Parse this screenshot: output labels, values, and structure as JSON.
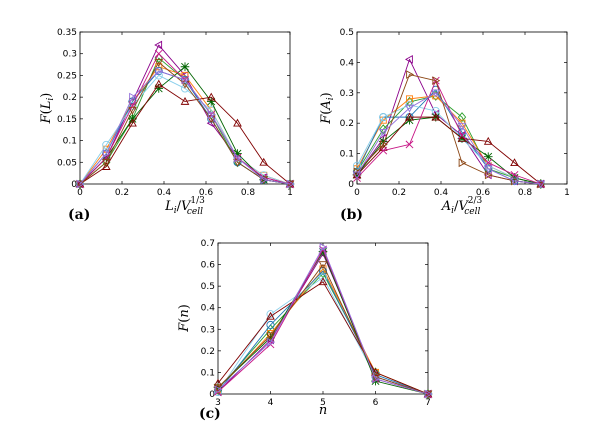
{
  "chart_data": [
    {
      "type": "line",
      "panel_label": "(a)",
      "xlabel_base": "L",
      "xlabel_sub": "i",
      "xlabel_denom": "V",
      "xlabel_denom_sub": "cell",
      "xlabel_exp": "1/3",
      "ylabel_fn": "F",
      "ylabel_arg": "L",
      "ylabel_arg_sub": "i",
      "xlim": [
        0,
        1
      ],
      "ylim": [
        0,
        0.35
      ],
      "xticks": [
        "0",
        "0.2",
        "0.4",
        "0.6",
        "0.8",
        "1"
      ],
      "yticks": [
        "0",
        "0.05",
        "0.1",
        "0.15",
        "0.2",
        "0.25",
        "0.3",
        "0.35"
      ],
      "x": [
        0,
        0.125,
        0.25,
        0.375,
        0.5,
        0.625,
        0.75,
        0.875,
        1
      ],
      "series": [
        {
          "values": [
            0,
            0.06,
            0.19,
            0.32,
            0.25,
            0.14,
            0.06,
            0.015,
            0
          ],
          "color": "#8b008b",
          "marker": "tri-left"
        },
        {
          "values": [
            0,
            0.05,
            0.15,
            0.29,
            0.24,
            0.16,
            0.05,
            0.01,
            0
          ],
          "color": "#2ca02c",
          "marker": "diamond"
        },
        {
          "values": [
            0,
            0.08,
            0.19,
            0.27,
            0.25,
            0.17,
            0.06,
            0.02,
            0
          ],
          "color": "#ff7f0e",
          "marker": "square"
        },
        {
          "values": [
            0,
            0.07,
            0.19,
            0.26,
            0.24,
            0.15,
            0.05,
            0.01,
            0
          ],
          "color": "#1f77b4",
          "marker": "circle"
        },
        {
          "values": [
            0,
            0.09,
            0.18,
            0.25,
            0.22,
            0.17,
            0.06,
            0.02,
            0
          ],
          "color": "#87ceeb",
          "marker": "circle"
        },
        {
          "values": [
            0,
            0.06,
            0.15,
            0.22,
            0.27,
            0.19,
            0.07,
            0.01,
            0
          ],
          "color": "#006400",
          "marker": "star"
        },
        {
          "values": [
            0,
            0.04,
            0.14,
            0.23,
            0.19,
            0.2,
            0.14,
            0.05,
            0
          ],
          "color": "#800000",
          "marker": "tri-up"
        },
        {
          "values": [
            0,
            0.06,
            0.18,
            0.3,
            0.24,
            0.16,
            0.06,
            0.015,
            0
          ],
          "color": "#c71585",
          "marker": "x"
        },
        {
          "values": [
            0,
            0.05,
            0.17,
            0.28,
            0.23,
            0.15,
            0.05,
            0.01,
            0
          ],
          "color": "#8b4513",
          "marker": "tri-down"
        },
        {
          "values": [
            0,
            0.07,
            0.2,
            0.26,
            0.24,
            0.16,
            0.06,
            0.01,
            0
          ],
          "color": "#9370db",
          "marker": "tri-right"
        }
      ]
    },
    {
      "type": "line",
      "panel_label": "(b)",
      "xlabel_base": "A",
      "xlabel_sub": "i",
      "xlabel_denom": "V",
      "xlabel_denom_sub": "cell",
      "xlabel_exp": "2/3",
      "ylabel_fn": "F",
      "ylabel_arg": "A",
      "ylabel_arg_sub": "i",
      "xlim": [
        0,
        1
      ],
      "ylim": [
        0,
        0.5
      ],
      "xticks": [
        "0",
        "0.2",
        "0.4",
        "0.6",
        "0.8",
        "1"
      ],
      "yticks": [
        "0",
        "0.1",
        "0.2",
        "0.3",
        "0.4",
        "0.5"
      ],
      "x": [
        0,
        0.125,
        0.25,
        0.375,
        0.5,
        0.625,
        0.75,
        0.875
      ],
      "series": [
        {
          "values": [
            0.03,
            0.15,
            0.41,
            0.23,
            0.16,
            0.03,
            0.01,
            0
          ],
          "color": "#8b008b",
          "marker": "tri-left"
        },
        {
          "values": [
            0.04,
            0.18,
            0.27,
            0.29,
            0.22,
            0.05,
            0.02,
            0
          ],
          "color": "#2ca02c",
          "marker": "diamond"
        },
        {
          "values": [
            0.05,
            0.21,
            0.28,
            0.29,
            0.2,
            0.06,
            0.02,
            0
          ],
          "color": "#ff7f0e",
          "marker": "square"
        },
        {
          "values": [
            0.04,
            0.22,
            0.22,
            0.31,
            0.17,
            0.05,
            0.01,
            0
          ],
          "color": "#1f77b4",
          "marker": "circle"
        },
        {
          "values": [
            0.06,
            0.22,
            0.26,
            0.24,
            0.15,
            0.06,
            0.02,
            0
          ],
          "color": "#87ceeb",
          "marker": "circle"
        },
        {
          "values": [
            0.03,
            0.14,
            0.21,
            0.22,
            0.15,
            0.09,
            0.02,
            0
          ],
          "color": "#006400",
          "marker": "star"
        },
        {
          "values": [
            0.03,
            0.12,
            0.22,
            0.22,
            0.15,
            0.14,
            0.07,
            0
          ],
          "color": "#800000",
          "marker": "tri-up"
        },
        {
          "values": [
            0.02,
            0.11,
            0.13,
            0.34,
            0.16,
            0.07,
            0.03,
            0
          ],
          "color": "#c71585",
          "marker": "x"
        },
        {
          "values": [
            0.04,
            0.13,
            0.36,
            0.34,
            0.07,
            0.03,
            0.01,
            0
          ],
          "color": "#8b4513",
          "marker": "tri-right"
        },
        {
          "values": [
            0.03,
            0.17,
            0.25,
            0.3,
            0.19,
            0.05,
            0.01,
            0
          ],
          "color": "#9370db",
          "marker": "tri-down"
        }
      ]
    },
    {
      "type": "line",
      "panel_label": "(c)",
      "xlabel_base": "n",
      "ylabel_fn": "F",
      "ylabel_arg": "n",
      "xlim": [
        3,
        7
      ],
      "ylim": [
        0,
        0.7
      ],
      "xticks": [
        "3",
        "4",
        "5",
        "6",
        "7"
      ],
      "yticks": [
        "0",
        "0.1",
        "0.2",
        "0.3",
        "0.4",
        "0.5",
        "0.6",
        "0.7"
      ],
      "x": [
        3,
        4,
        5,
        6,
        7
      ],
      "series": [
        {
          "values": [
            0.01,
            0.25,
            0.65,
            0.08,
            0
          ],
          "color": "#8b008b",
          "marker": "tri-left"
        },
        {
          "values": [
            0.02,
            0.3,
            0.56,
            0.1,
            0
          ],
          "color": "#2ca02c",
          "marker": "diamond"
        },
        {
          "values": [
            0.02,
            0.28,
            0.58,
            0.1,
            0
          ],
          "color": "#ff7f0e",
          "marker": "square"
        },
        {
          "values": [
            0.01,
            0.32,
            0.57,
            0.09,
            0
          ],
          "color": "#1f77b4",
          "marker": "circle"
        },
        {
          "values": [
            0.01,
            0.37,
            0.54,
            0.08,
            0
          ],
          "color": "#87ceeb",
          "marker": "circle"
        },
        {
          "values": [
            0.03,
            0.26,
            0.66,
            0.06,
            0
          ],
          "color": "#006400",
          "marker": "star"
        },
        {
          "values": [
            0.05,
            0.36,
            0.52,
            0.1,
            0
          ],
          "color": "#800000",
          "marker": "tri-up"
        },
        {
          "values": [
            0.01,
            0.23,
            0.67,
            0.07,
            0
          ],
          "color": "#c71585",
          "marker": "x"
        },
        {
          "values": [
            0.03,
            0.27,
            0.6,
            0.08,
            0
          ],
          "color": "#8b4513",
          "marker": "tri-down"
        },
        {
          "values": [
            0.02,
            0.24,
            0.68,
            0.07,
            0
          ],
          "color": "#9370db",
          "marker": "tri-right"
        }
      ]
    }
  ]
}
